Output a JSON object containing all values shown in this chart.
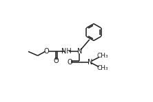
{
  "bg_color": "#ffffff",
  "line_color": "#1a1a1a",
  "line_width": 1.1,
  "font_size": 7.0,
  "fig_width": 2.22,
  "fig_height": 1.49,
  "dpi": 100,
  "xlim": [
    0,
    10
  ],
  "ylim": [
    0,
    6.7
  ]
}
